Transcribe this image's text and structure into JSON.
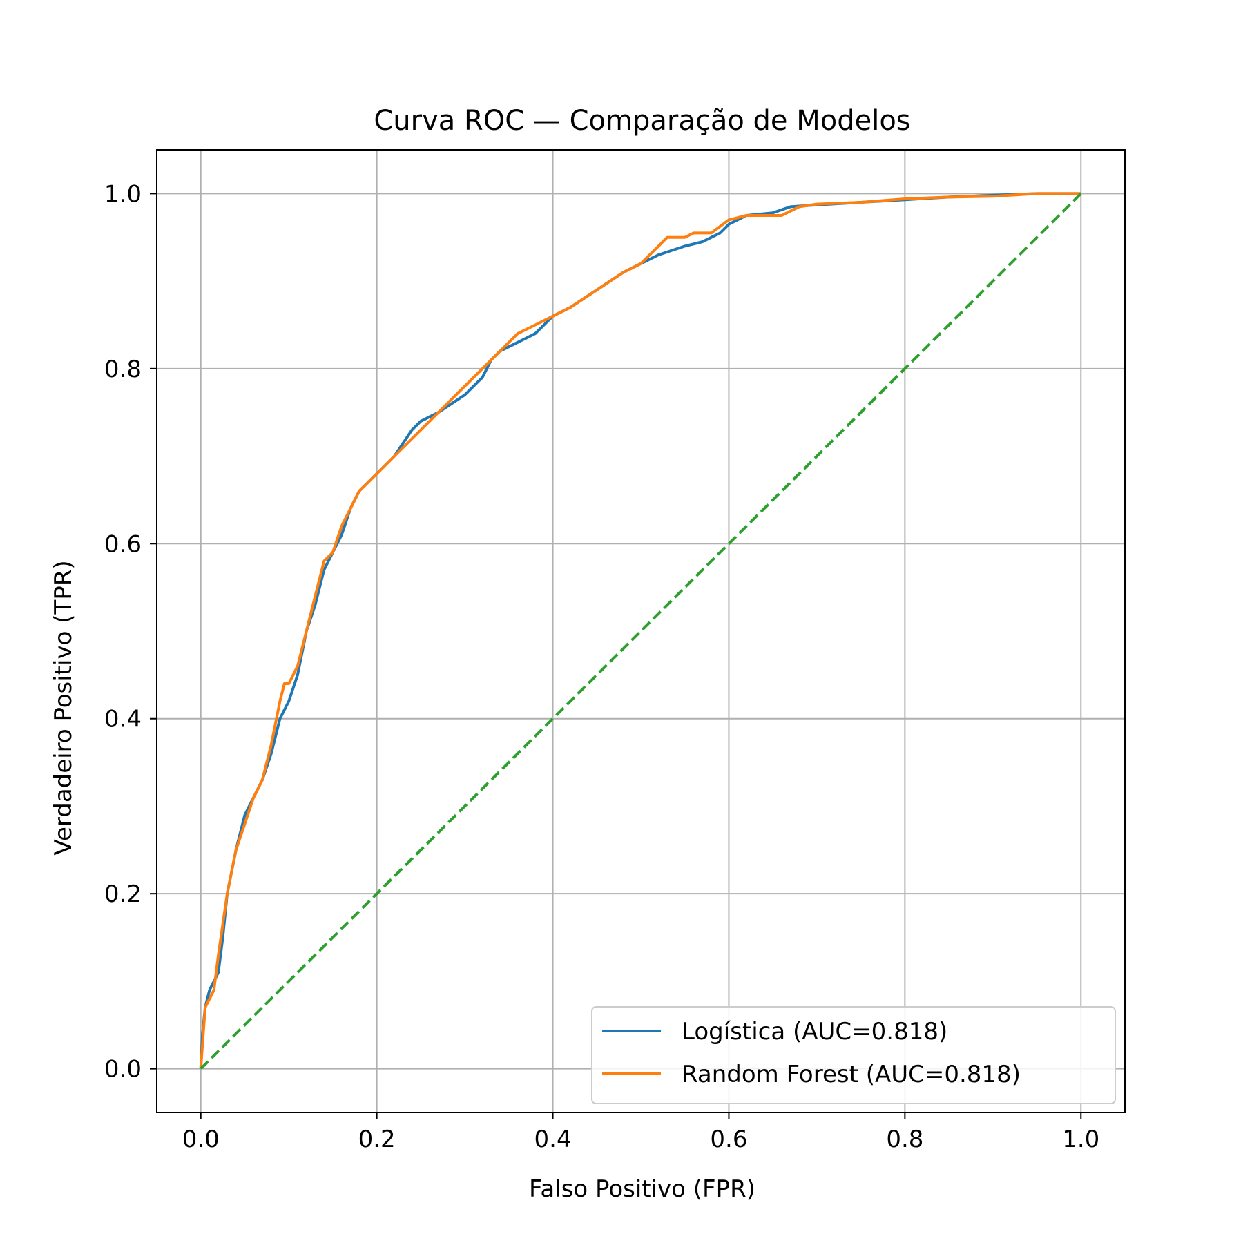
{
  "chart_data": {
    "type": "line",
    "title": "Curva ROC — Comparação de Modelos",
    "xlabel": "Falso Positivo (FPR)",
    "ylabel": "Verdadeiro Positivo (TPR)",
    "xlim": [
      -0.05,
      1.05
    ],
    "ylim": [
      -0.05,
      1.05
    ],
    "xticks": [
      0.0,
      0.2,
      0.4,
      0.6,
      0.8,
      1.0
    ],
    "yticks": [
      0.0,
      0.2,
      0.4,
      0.6,
      0.8,
      1.0
    ],
    "xtick_labels": [
      "0.0",
      "0.2",
      "0.4",
      "0.6",
      "0.8",
      "1.0"
    ],
    "ytick_labels": [
      "0.0",
      "0.2",
      "0.4",
      "0.6",
      "0.8",
      "1.0"
    ],
    "grid": true,
    "legend_position": "bottom-right",
    "series": [
      {
        "name": "Logística (AUC=0.818)",
        "color": "#1f77b4",
        "style": "solid",
        "x": [
          0.0,
          0.002,
          0.005,
          0.01,
          0.02,
          0.025,
          0.03,
          0.04,
          0.05,
          0.06,
          0.07,
          0.08,
          0.09,
          0.1,
          0.11,
          0.12,
          0.13,
          0.14,
          0.15,
          0.16,
          0.17,
          0.18,
          0.19,
          0.2,
          0.22,
          0.24,
          0.25,
          0.27,
          0.3,
          0.32,
          0.33,
          0.34,
          0.36,
          0.38,
          0.4,
          0.42,
          0.45,
          0.48,
          0.5,
          0.52,
          0.55,
          0.57,
          0.59,
          0.6,
          0.62,
          0.65,
          0.67,
          0.7,
          0.75,
          0.8,
          0.85,
          0.9,
          0.95,
          1.0
        ],
        "y": [
          0.0,
          0.04,
          0.07,
          0.09,
          0.11,
          0.15,
          0.2,
          0.25,
          0.29,
          0.31,
          0.33,
          0.36,
          0.4,
          0.42,
          0.45,
          0.5,
          0.53,
          0.57,
          0.59,
          0.61,
          0.64,
          0.66,
          0.67,
          0.68,
          0.7,
          0.73,
          0.74,
          0.75,
          0.77,
          0.79,
          0.81,
          0.82,
          0.83,
          0.84,
          0.86,
          0.87,
          0.89,
          0.91,
          0.92,
          0.93,
          0.94,
          0.945,
          0.955,
          0.965,
          0.975,
          0.978,
          0.985,
          0.987,
          0.99,
          0.993,
          0.996,
          0.998,
          1.0,
          1.0
        ]
      },
      {
        "name": "Random Forest (AUC=0.818)",
        "color": "#ff7f0e",
        "style": "solid",
        "x": [
          0.0,
          0.005,
          0.01,
          0.015,
          0.02,
          0.03,
          0.04,
          0.05,
          0.06,
          0.07,
          0.08,
          0.09,
          0.095,
          0.1,
          0.11,
          0.12,
          0.13,
          0.14,
          0.15,
          0.16,
          0.17,
          0.18,
          0.19,
          0.2,
          0.22,
          0.24,
          0.26,
          0.28,
          0.3,
          0.32,
          0.34,
          0.36,
          0.38,
          0.4,
          0.42,
          0.45,
          0.48,
          0.5,
          0.52,
          0.53,
          0.55,
          0.56,
          0.58,
          0.6,
          0.62,
          0.66,
          0.68,
          0.7,
          0.75,
          0.8,
          0.85,
          0.9,
          0.95,
          1.0
        ],
        "y": [
          0.0,
          0.07,
          0.08,
          0.09,
          0.13,
          0.2,
          0.25,
          0.28,
          0.31,
          0.33,
          0.37,
          0.42,
          0.44,
          0.44,
          0.46,
          0.5,
          0.54,
          0.58,
          0.59,
          0.62,
          0.64,
          0.66,
          0.67,
          0.68,
          0.7,
          0.72,
          0.74,
          0.76,
          0.78,
          0.8,
          0.82,
          0.84,
          0.85,
          0.86,
          0.87,
          0.89,
          0.91,
          0.92,
          0.94,
          0.95,
          0.95,
          0.955,
          0.955,
          0.97,
          0.975,
          0.975,
          0.985,
          0.988,
          0.99,
          0.994,
          0.996,
          0.997,
          1.0,
          1.0
        ]
      },
      {
        "name": "",
        "color": "#2ca02c",
        "style": "dashed",
        "x": [
          0.0,
          1.0
        ],
        "y": [
          0.0,
          1.0
        ]
      }
    ]
  }
}
